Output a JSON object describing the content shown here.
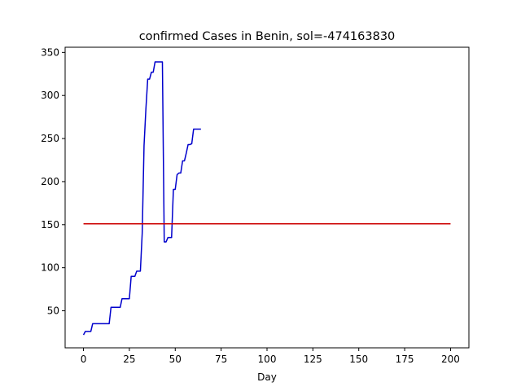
{
  "chart_data": {
    "type": "line",
    "title": "confirmed Cases in Benin, sol=-474163830",
    "xlabel": "Day",
    "ylabel": "",
    "xlim": [
      -10,
      210
    ],
    "ylim": [
      7,
      356
    ],
    "xticks": [
      0,
      25,
      50,
      75,
      100,
      125,
      150,
      175,
      200
    ],
    "yticks": [
      50,
      100,
      150,
      200,
      250,
      300,
      350
    ],
    "grid": false,
    "series": [
      {
        "color": "#0000cc",
        "x": [
          0,
          1,
          2,
          3,
          4,
          5,
          6,
          7,
          8,
          9,
          10,
          11,
          12,
          13,
          14,
          15,
          16,
          17,
          18,
          19,
          20,
          21,
          22,
          23,
          24,
          25,
          26,
          27,
          28,
          29,
          30,
          31,
          32,
          33,
          34,
          35,
          36,
          37,
          38,
          39,
          40,
          41,
          42,
          43,
          44,
          45,
          46,
          47,
          48,
          49,
          50,
          51,
          52,
          53,
          54,
          55,
          56,
          57,
          58,
          59,
          60,
          61,
          62,
          63,
          64
        ],
        "values": [
          22,
          26,
          26,
          26,
          26,
          35,
          35,
          35,
          35,
          35,
          35,
          35,
          35,
          35,
          35,
          54,
          54,
          54,
          54,
          54,
          54,
          64,
          64,
          64,
          64,
          64,
          90,
          90,
          90,
          96,
          96,
          96,
          140,
          242,
          284,
          319,
          319,
          327,
          327,
          339,
          339,
          339,
          339,
          339,
          130,
          130,
          135,
          135,
          135,
          191,
          191,
          208,
          210,
          210,
          224,
          224,
          233,
          243,
          243,
          244,
          261,
          261,
          261,
          261,
          261
        ]
      },
      {
        "color": "#cc0000",
        "x": [
          0,
          200
        ],
        "values": [
          151,
          151
        ]
      }
    ]
  }
}
